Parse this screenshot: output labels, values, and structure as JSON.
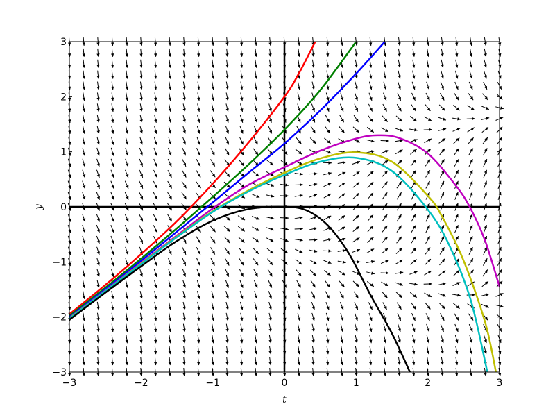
{
  "chart_data": {
    "type": "line",
    "title": "",
    "xlabel": "t",
    "ylabel": "y",
    "xlim": [
      -3,
      3
    ],
    "ylim": [
      -3,
      3
    ],
    "xticks": [
      -3,
      -2,
      -1,
      0,
      1,
      2,
      3
    ],
    "yticks": [
      -3,
      -2,
      -1,
      0,
      1,
      2,
      3
    ],
    "xtick_labels": [
      "−3",
      "−2",
      "−1",
      "0",
      "1",
      "2",
      "3"
    ],
    "ytick_labels": [
      "−3",
      "−2",
      "−1",
      "0",
      "1",
      "2",
      "3"
    ],
    "grid": false,
    "legend": "none",
    "direction_field": {
      "dy_dt": "t - y^2",
      "grid_spacing": 0.2
    },
    "series": [
      {
        "color": "#ff0000",
        "x": [
          -3,
          -2.5,
          -2,
          -1.5,
          -1,
          -0.5,
          0,
          0.2,
          0.43
        ],
        "y": [
          -1.95,
          -1.42,
          -0.86,
          -0.26,
          0.42,
          1.17,
          2.0,
          2.42,
          3.0
        ]
      },
      {
        "color": "#008000",
        "x": [
          -3,
          -2.5,
          -2,
          -1.5,
          -1,
          -0.5,
          0,
          0.5,
          1.0
        ],
        "y": [
          -1.98,
          -1.47,
          -0.94,
          -0.39,
          0.18,
          0.77,
          1.4,
          2.12,
          3.0
        ]
      },
      {
        "color": "#0000ff",
        "x": [
          -3,
          -2.5,
          -2,
          -1.5,
          -1,
          -0.5,
          0,
          0.5,
          1.0,
          1.4
        ],
        "y": [
          -2.0,
          -1.5,
          -0.98,
          -0.45,
          0.08,
          0.62,
          1.15,
          1.75,
          2.42,
          3.0
        ]
      },
      {
        "color": "#bf00bf",
        "x": [
          -3,
          -2.5,
          -2,
          -1.5,
          -1,
          -0.5,
          0,
          0.5,
          1.0,
          1.3,
          1.6,
          2.0,
          2.4,
          2.6,
          2.8,
          3.0
        ],
        "y": [
          -2.02,
          -1.52,
          -1.02,
          -0.52,
          -0.03,
          0.4,
          0.72,
          1.02,
          1.24,
          1.3,
          1.25,
          0.97,
          0.37,
          -0.04,
          -0.62,
          -1.45
        ]
      },
      {
        "color": "#bfbf00",
        "x": [
          -3,
          -2.5,
          -2,
          -1.5,
          -1,
          -0.5,
          0,
          0.5,
          1.0,
          1.5,
          2.0,
          2.2,
          2.5,
          2.8,
          2.95
        ],
        "y": [
          -2.02,
          -1.53,
          -1.03,
          -0.54,
          -0.08,
          0.3,
          0.62,
          0.88,
          0.99,
          0.82,
          0.2,
          -0.18,
          -0.98,
          -2.1,
          -3.0
        ]
      },
      {
        "color": "#00bfbf",
        "x": [
          -3,
          -2.5,
          -2,
          -1.5,
          -1,
          -0.5,
          0,
          0.5,
          1.0,
          1.5,
          2.0,
          2.3,
          2.6,
          2.83
        ],
        "y": [
          -2.03,
          -1.53,
          -1.04,
          -0.55,
          -0.09,
          0.28,
          0.58,
          0.82,
          0.89,
          0.65,
          -0.05,
          -0.7,
          -1.7,
          -3.0
        ]
      },
      {
        "color": "#000000",
        "x": [
          -3,
          -2.5,
          -2,
          -1.5,
          -1,
          -0.5,
          0,
          0.3,
          0.6,
          0.9,
          1.2,
          1.5,
          1.75
        ],
        "y": [
          -2.05,
          -1.56,
          -1.08,
          -0.62,
          -0.25,
          -0.04,
          0.0,
          -0.06,
          -0.33,
          -0.85,
          -1.6,
          -2.3,
          -3.0
        ]
      }
    ]
  }
}
